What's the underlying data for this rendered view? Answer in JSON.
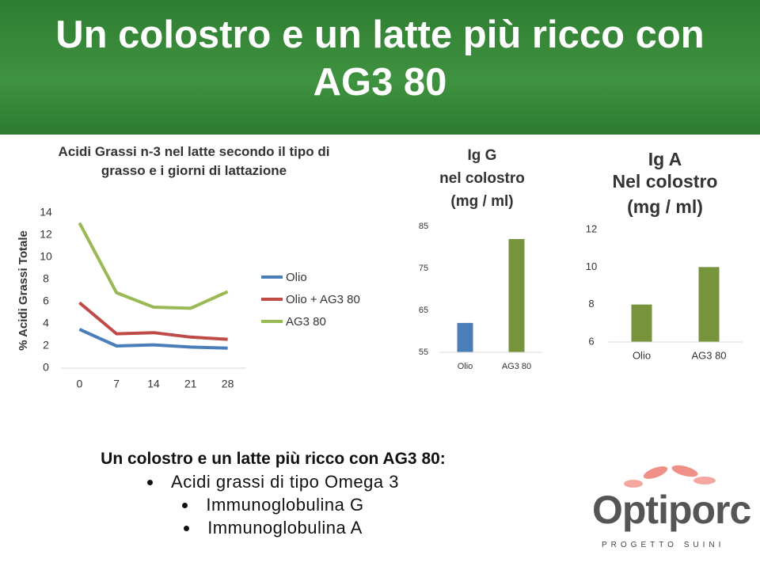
{
  "title": "Un colostro e un latte più ricco con AG3 80",
  "chart_data": [
    {
      "type": "line",
      "title": "Acidi Grassi n-3 nel latte secondo il tipo di grasso e i giorni di lattazione",
      "y_label": "% Acidi Grassi Totale",
      "categories": [
        "0",
        "7",
        "14",
        "21",
        "28"
      ],
      "series": [
        {
          "name": "Olio",
          "color": "#4a7ebb",
          "values": [
            3.5,
            2.0,
            2.1,
            1.9,
            1.8
          ]
        },
        {
          "name": "Olio + AG3 80",
          "color": "#be4b48",
          "values": [
            5.9,
            3.1,
            3.2,
            2.8,
            2.6
          ]
        },
        {
          "name": "AG3 80",
          "color": "#98b954",
          "values": [
            13.1,
            6.8,
            5.5,
            5.4,
            6.9
          ]
        }
      ],
      "ylim": [
        0,
        14
      ],
      "yticks": [
        0,
        2,
        4,
        6,
        8,
        10,
        12,
        14
      ],
      "legend": "right"
    },
    {
      "type": "bar",
      "title": [
        "Ig G",
        "nel colostro",
        "(mg / ml)"
      ],
      "categories": [
        "Olio",
        "AG3 80"
      ],
      "values": [
        62,
        82
      ],
      "colors": [
        "#4a7ebb",
        "#77933c"
      ],
      "ylim": [
        55,
        85
      ],
      "yticks": [
        55,
        65,
        75,
        85
      ]
    },
    {
      "type": "bar",
      "title": [
        "Ig A",
        "Nel colostro",
        "(mg / ml)"
      ],
      "categories": [
        "Olio",
        "AG3 80"
      ],
      "values": [
        8,
        10
      ],
      "colors": [
        "#77933c",
        "#77933c"
      ],
      "ylim": [
        6,
        12
      ],
      "yticks": [
        6,
        8,
        10,
        12
      ]
    }
  ],
  "summary": {
    "heading": "Un colostro e un latte più ricco con AG3 80:",
    "bullets": [
      "Acidi grassi di tipo Omega 3",
      "Immunoglobulina G",
      "Immunoglobulina A"
    ]
  },
  "logo": {
    "name": "Optiporc",
    "tagline": "PROGETTO SUINI"
  }
}
